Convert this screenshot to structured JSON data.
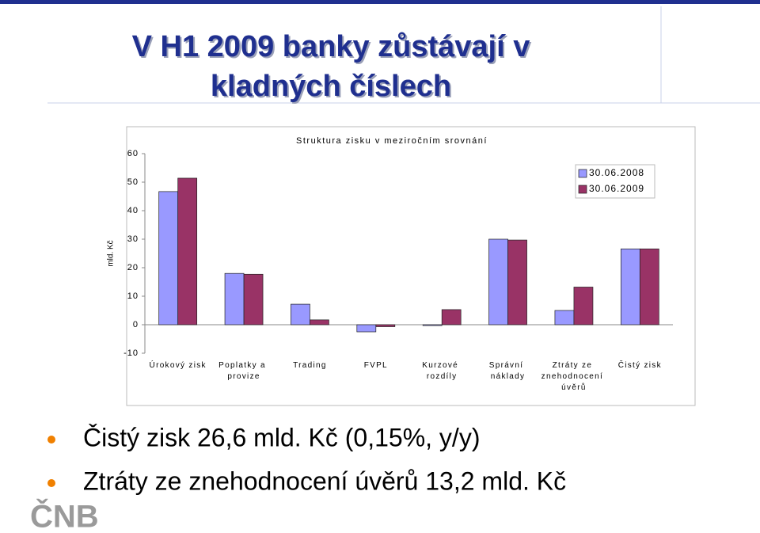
{
  "slide": {
    "title_lines": [
      "V H1 2009 banky zůstávají v",
      "kladných číslech"
    ],
    "bullets": [
      "Čistý zisk 26,6 mld. Kč (0,15%, y/y)",
      "Ztráty ze znehodnocení úvěrů 13,2 mld. Kč"
    ],
    "logo": "ČNB"
  },
  "chart_data": {
    "type": "bar",
    "title": "Struktura zisku v meziročním srovnání",
    "y_label": "mld. Kč",
    "categories": [
      "Úrokový zisk",
      "Poplatky a\nprovize",
      "Trading",
      "FVPL",
      "Kurzové\nrozdíly",
      "Správní\nnáklady",
      "Ztráty ze\nznehodnocení\núvěrů",
      "Čistý zisk"
    ],
    "series": [
      {
        "name": "30.06.2008",
        "color": "#9999ff",
        "values": [
          46.7,
          18.0,
          7.2,
          -2.5,
          -0.3,
          30.0,
          5.0,
          26.6
        ]
      },
      {
        "name": "30.06.2009",
        "color": "#993366",
        "values": [
          51.4,
          17.7,
          1.7,
          -0.7,
          5.3,
          29.7,
          13.2,
          26.6
        ]
      }
    ],
    "ylim": [
      -10,
      60
    ],
    "yticks": [
      -10,
      0,
      10,
      20,
      30,
      40,
      50,
      60
    ],
    "grid": false,
    "legend": "top-right"
  }
}
